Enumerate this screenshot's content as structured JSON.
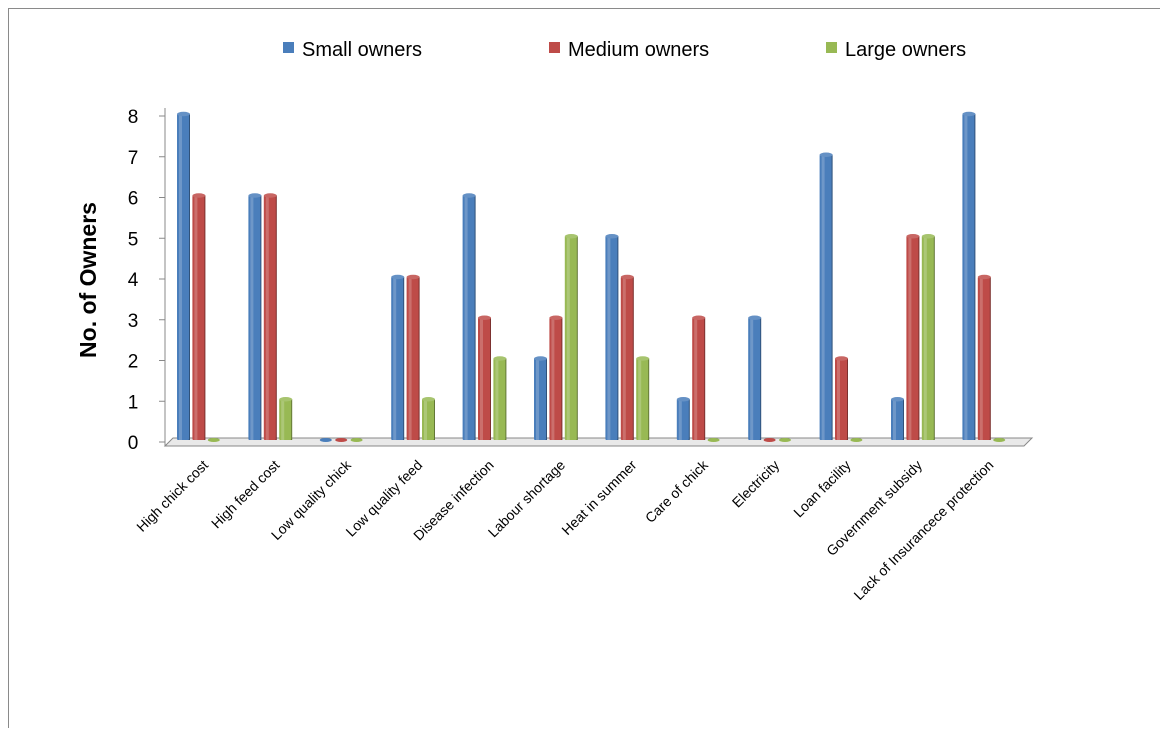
{
  "chart_data": {
    "type": "bar",
    "title": "",
    "xlabel": "",
    "ylabel": "No. of Owners",
    "ylim": [
      0,
      8
    ],
    "yticks": [
      "0",
      "1",
      "2",
      "3",
      "4",
      "5",
      "6",
      "7",
      "8"
    ],
    "grid": false,
    "legend_position": "top",
    "categories": [
      "High chick cost",
      "High feed cost",
      "Low quality chick",
      "Low quality feed",
      "Disease infection",
      "Labour shortage",
      "Heat in summer",
      "Care of chick",
      "Electricity",
      "Loan facility",
      "Government subsidy",
      "Lack of Insurancece protection"
    ],
    "series": [
      {
        "name": "Small owners",
        "color": "#4a7ebb",
        "values": [
          8,
          6,
          0,
          4,
          6,
          2,
          5,
          1,
          3,
          7,
          1,
          8
        ]
      },
      {
        "name": "Medium owners",
        "color": "#be4b48",
        "values": [
          6,
          6,
          0,
          4,
          3,
          3,
          4,
          3,
          0,
          2,
          5,
          4
        ]
      },
      {
        "name": "Large owners",
        "color": "#98b954",
        "values": [
          0,
          1,
          0,
          1,
          2,
          5,
          2,
          0,
          0,
          0,
          5,
          0
        ]
      }
    ]
  }
}
